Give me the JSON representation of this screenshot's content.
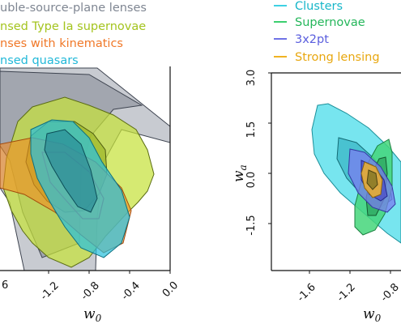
{
  "chart_data": [
    {
      "type": "contour",
      "xlabel": "w0",
      "xlim": [
        -1.9,
        0.0
      ],
      "x_ticks": [
        "-1.2",
        "-0.8",
        "-0.4",
        "0.0"
      ],
      "legend_position": "top-left",
      "series": [
        {
          "name": "Double-source-plane lenses",
          "label": "uble-source-plane lenses",
          "color": "#9aa1ab",
          "center": [
            -1.0,
            0.3
          ]
        },
        {
          "name": "Lensed Type Ia supernovae",
          "label": "nsed Type Ia supernovae",
          "color": "#b8d935",
          "center": [
            -0.95,
            0.0
          ]
        },
        {
          "name": "Lenses with kinematics",
          "label": "nses with kinematics",
          "color": "#f07828",
          "center": [
            -1.05,
            0.1
          ]
        },
        {
          "name": "Lensed quasars",
          "label": "nsed quasars",
          "color": "#21b8d8",
          "center": [
            -0.95,
            0.0
          ]
        }
      ]
    },
    {
      "type": "contour",
      "xlabel": "w0",
      "ylabel": "wa",
      "xlim": [
        -1.9,
        -0.55
      ],
      "ylim": [
        -2.9,
        3.0
      ],
      "x_ticks": [
        "-1.6",
        "-1.2",
        "-0.8"
      ],
      "y_ticks": [
        "3.0",
        "1.5",
        "0.0",
        "-1.5"
      ],
      "legend_position": "top",
      "series": [
        {
          "name": "Clusters",
          "color": "#3fd1e3",
          "center": [
            -1.0,
            0.0
          ]
        },
        {
          "name": "Supernovae",
          "color": "#3ccf6f",
          "center": [
            -1.0,
            0.0
          ]
        },
        {
          "name": "3x2pt",
          "color": "#6f72e6",
          "center": [
            -1.0,
            0.0
          ]
        },
        {
          "name": "Strong lensing",
          "color": "#f0b322",
          "center": [
            -1.0,
            0.0
          ]
        }
      ]
    }
  ]
}
